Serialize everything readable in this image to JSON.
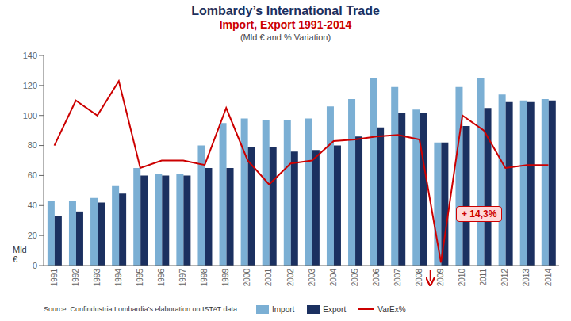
{
  "chart_data": {
    "type": "bar",
    "title": [
      "Lombardy’s International Trade",
      "Import, Export 1991-2014"
    ],
    "subtitle": "(Mld € and % Variation)",
    "ylabel": "Mld\n€",
    "categories": [
      1991,
      1992,
      1993,
      1994,
      1995,
      1996,
      1997,
      1998,
      1999,
      2000,
      2001,
      2002,
      2003,
      2004,
      2005,
      2006,
      2007,
      2008,
      2009,
      2010,
      2011,
      2012,
      2013,
      2014
    ],
    "series": [
      {
        "name": "Import",
        "type": "bar",
        "color": "#7BAFD4",
        "values": [
          43,
          43,
          45,
          53,
          65,
          61,
          61,
          80,
          95,
          98,
          97,
          97,
          98,
          106,
          111,
          125,
          119,
          104,
          82,
          119,
          125,
          114,
          110,
          111
        ]
      },
      {
        "name": "Export",
        "type": "bar",
        "color": "#1B3060",
        "values": [
          33,
          36,
          42,
          48,
          60,
          60,
          60,
          65,
          65,
          79,
          79,
          76,
          77,
          80,
          86,
          92,
          102,
          102,
          82,
          93,
          105,
          109,
          109,
          110
        ]
      },
      {
        "name": "VarEx%",
        "type": "line",
        "color": "#CC0000",
        "values": [
          80,
          110,
          100,
          123,
          65,
          70,
          70,
          67,
          105,
          70,
          54,
          68,
          70,
          83,
          84,
          86,
          87,
          84,
          2,
          100,
          90,
          65,
          67,
          67
        ]
      }
    ],
    "ylim": [
      0,
      140
    ],
    "yticks": [
      0,
      20,
      40,
      60,
      80,
      100,
      120,
      140
    ],
    "grid": false,
    "legend": "bottom",
    "annotations": [
      {
        "text": "+ 14,3%"
      }
    ],
    "source": "Source: Confindustria Lombardia’s elaboration on ISTAT data"
  }
}
